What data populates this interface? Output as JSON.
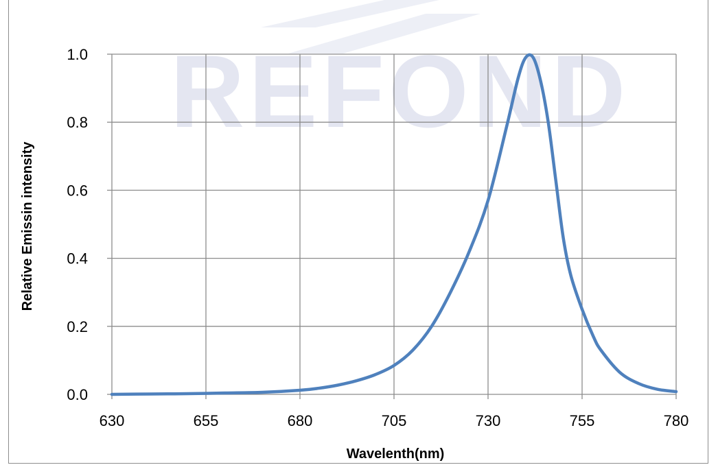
{
  "chart_data": {
    "type": "line",
    "xlabel": "Wavelenth(nm)",
    "ylabel": "Relative Emissin intensity",
    "xlim": [
      630,
      780
    ],
    "ylim": [
      0.0,
      1.0
    ],
    "x_ticks": [
      "630",
      "655",
      "680",
      "705",
      "730",
      "755",
      "780"
    ],
    "y_ticks": [
      "0.0",
      "0.2",
      "0.4",
      "0.6",
      "0.8",
      "1.0"
    ],
    "grid": true,
    "legend": "none",
    "watermark": "REFOND",
    "line_color": "#4f81bd",
    "series": [
      {
        "x": [
          630,
          640,
          650,
          660,
          670,
          680,
          685,
          690,
          695,
          700,
          705,
          710,
          715,
          720,
          725,
          730,
          735,
          738,
          740,
          742,
          744,
          746,
          748,
          750,
          752,
          755,
          758,
          760,
          765,
          770,
          775,
          780
        ],
        "values": [
          0.0,
          0.001,
          0.002,
          0.004,
          0.006,
          0.012,
          0.018,
          0.027,
          0.04,
          0.058,
          0.085,
          0.13,
          0.2,
          0.3,
          0.42,
          0.57,
          0.79,
          0.93,
          0.99,
          0.99,
          0.92,
          0.8,
          0.63,
          0.46,
          0.35,
          0.25,
          0.17,
          0.13,
          0.065,
          0.032,
          0.015,
          0.008
        ]
      }
    ]
  }
}
